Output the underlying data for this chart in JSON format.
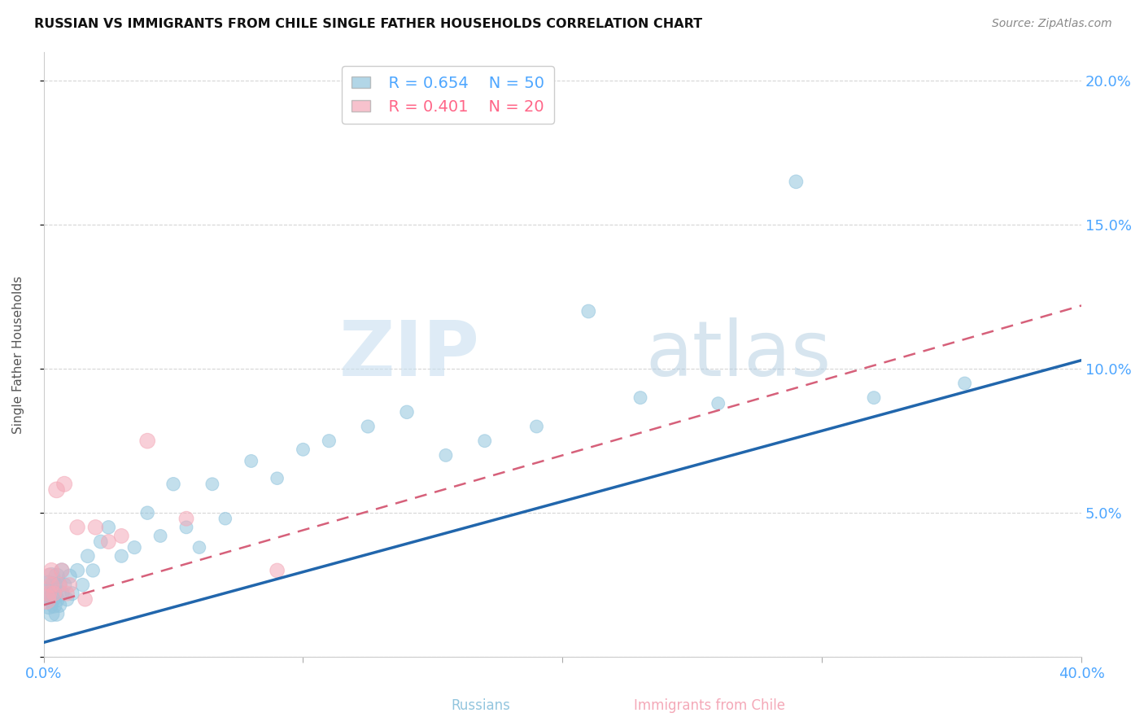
{
  "title": "RUSSIAN VS IMMIGRANTS FROM CHILE SINGLE FATHER HOUSEHOLDS CORRELATION CHART",
  "source": "Source: ZipAtlas.com",
  "ylabel_label": "Single Father Households",
  "xlim": [
    0.0,
    0.4
  ],
  "ylim": [
    0.0,
    0.21
  ],
  "xtick_positions": [
    0.0,
    0.1,
    0.2,
    0.3,
    0.4
  ],
  "xtick_labels": [
    "0.0%",
    "",
    "",
    "",
    "40.0%"
  ],
  "ytick_positions": [
    0.0,
    0.05,
    0.1,
    0.15,
    0.2
  ],
  "ytick_labels": [
    "",
    "5.0%",
    "10.0%",
    "15.0%",
    "20.0%"
  ],
  "legend_r_blue": "R = 0.654",
  "legend_n_blue": "N = 50",
  "legend_r_pink": "R = 0.401",
  "legend_n_pink": "N = 20",
  "blue_color": "#92c5de",
  "pink_color": "#f4a9b8",
  "blue_line_color": "#2166ac",
  "pink_line_color": "#d6607a",
  "watermark_zip": "ZIP",
  "watermark_atlas": "atlas",
  "blue_line_x": [
    0.0,
    0.4
  ],
  "blue_line_y": [
    0.005,
    0.103
  ],
  "pink_line_x": [
    0.0,
    0.4
  ],
  "pink_line_y": [
    0.018,
    0.122
  ],
  "blue_scatter_x": [
    0.001,
    0.002,
    0.002,
    0.003,
    0.003,
    0.003,
    0.004,
    0.004,
    0.004,
    0.005,
    0.005,
    0.005,
    0.006,
    0.006,
    0.007,
    0.007,
    0.008,
    0.009,
    0.01,
    0.011,
    0.013,
    0.015,
    0.017,
    0.019,
    0.022,
    0.025,
    0.03,
    0.035,
    0.04,
    0.045,
    0.05,
    0.055,
    0.06,
    0.065,
    0.07,
    0.08,
    0.09,
    0.1,
    0.11,
    0.125,
    0.14,
    0.155,
    0.17,
    0.19,
    0.21,
    0.23,
    0.26,
    0.29,
    0.32,
    0.355
  ],
  "blue_scatter_y": [
    0.022,
    0.025,
    0.018,
    0.02,
    0.015,
    0.028,
    0.022,
    0.018,
    0.025,
    0.02,
    0.015,
    0.028,
    0.025,
    0.018,
    0.022,
    0.03,
    0.025,
    0.02,
    0.028,
    0.022,
    0.03,
    0.025,
    0.035,
    0.03,
    0.04,
    0.045,
    0.035,
    0.038,
    0.05,
    0.042,
    0.06,
    0.045,
    0.038,
    0.06,
    0.048,
    0.068,
    0.062,
    0.072,
    0.075,
    0.08,
    0.085,
    0.07,
    0.075,
    0.08,
    0.12,
    0.09,
    0.088,
    0.165,
    0.09,
    0.095
  ],
  "blue_scatter_sizes": [
    350,
    280,
    260,
    240,
    200,
    230,
    220,
    200,
    210,
    190,
    180,
    200,
    190,
    170,
    180,
    170,
    160,
    150,
    160,
    150,
    150,
    140,
    145,
    140,
    145,
    140,
    135,
    135,
    140,
    130,
    140,
    130,
    125,
    130,
    125,
    130,
    125,
    130,
    135,
    135,
    140,
    130,
    130,
    130,
    145,
    130,
    130,
    145,
    130,
    130
  ],
  "pink_scatter_x": [
    0.001,
    0.002,
    0.002,
    0.003,
    0.003,
    0.004,
    0.005,
    0.006,
    0.007,
    0.008,
    0.009,
    0.01,
    0.013,
    0.016,
    0.02,
    0.025,
    0.03,
    0.04,
    0.055,
    0.09
  ],
  "pink_scatter_y": [
    0.02,
    0.028,
    0.022,
    0.025,
    0.03,
    0.022,
    0.058,
    0.025,
    0.03,
    0.06,
    0.022,
    0.025,
    0.045,
    0.02,
    0.045,
    0.04,
    0.042,
    0.075,
    0.048,
    0.03
  ],
  "pink_scatter_sizes": [
    300,
    200,
    190,
    185,
    185,
    175,
    200,
    175,
    170,
    185,
    165,
    165,
    175,
    160,
    175,
    165,
    165,
    180,
    165,
    160
  ]
}
